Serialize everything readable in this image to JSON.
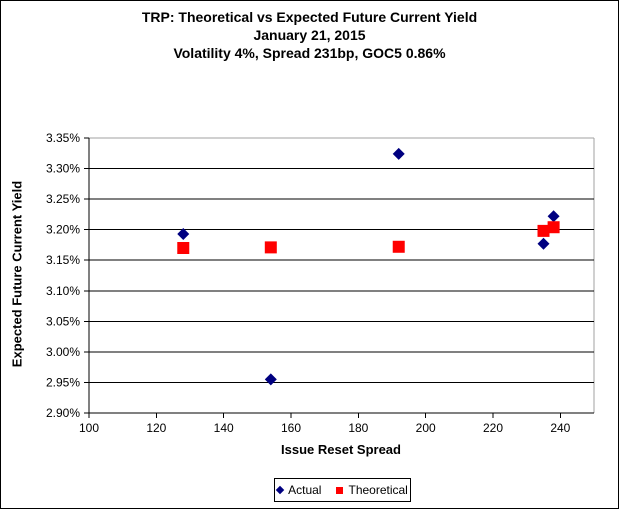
{
  "colors": {
    "actual": "#000080",
    "theoretical": "#ff0000",
    "gridline": "#000000",
    "axis": "#000000",
    "plot_border": "#a0a0a0",
    "background": "#ffffff",
    "text": "#000000"
  },
  "chart_data": {
    "type": "scatter",
    "title": "TRP: Theoretical vs Expected Future Current Yield",
    "subtitle_date": "January 21, 2015",
    "subtitle_params": "Volatility 4%, Spread 231bp, GOC5 0.86%",
    "xlabel": "Issue Reset Spread",
    "ylabel": "Expected Future Current Yield",
    "y_unit": "%",
    "xlim": [
      100,
      250
    ],
    "ylim": [
      2.9,
      3.35
    ],
    "x_ticks": [
      100,
      120,
      140,
      160,
      180,
      200,
      220,
      240
    ],
    "x_tick_labels": [
      "100",
      "120",
      "140",
      "160",
      "180",
      "200",
      "220",
      "240"
    ],
    "y_ticks": [
      2.9,
      2.95,
      3.0,
      3.05,
      3.1,
      3.15,
      3.2,
      3.25,
      3.3,
      3.35
    ],
    "y_tick_labels": [
      "2.90%",
      "2.95%",
      "3.00%",
      "3.05%",
      "3.10%",
      "3.15%",
      "3.20%",
      "3.25%",
      "3.30%",
      "3.35%"
    ],
    "grid": true,
    "legend_position": "bottom-center",
    "series": [
      {
        "name": "Actual",
        "marker": "diamond",
        "color": "#000080",
        "points": [
          [
            128,
            3.193
          ],
          [
            154,
            2.955
          ],
          [
            192,
            3.324
          ],
          [
            235,
            3.177
          ],
          [
            238,
            3.222
          ]
        ]
      },
      {
        "name": "Theoretical",
        "marker": "square",
        "color": "#ff0000",
        "points": [
          [
            128,
            3.17
          ],
          [
            154,
            3.171
          ],
          [
            192,
            3.172
          ],
          [
            235,
            3.198
          ],
          [
            238,
            3.204
          ]
        ]
      }
    ]
  }
}
